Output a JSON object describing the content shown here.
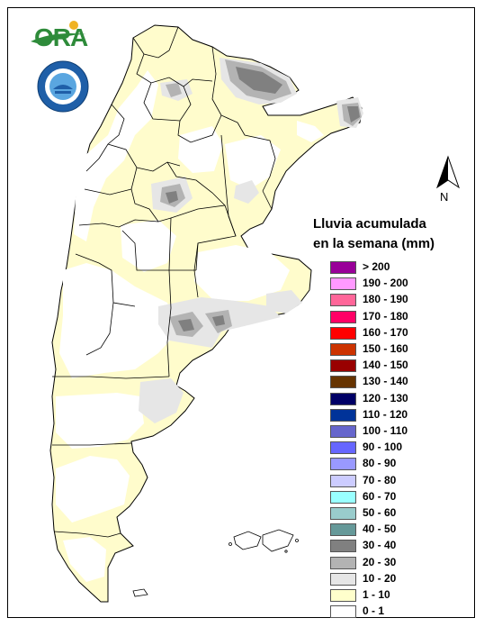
{
  "brand": {
    "logo_text": "ORA",
    "seal_name": "seal-emblem"
  },
  "north_label": "N",
  "legend": {
    "title_line1": "Lluvia acumulada",
    "title_line2": "en la semana (mm)",
    "items": [
      {
        "label": "> 200",
        "color": "#990099"
      },
      {
        "label": "190 - 200",
        "color": "#ff99ff"
      },
      {
        "label": "180 - 190",
        "color": "#ff6699"
      },
      {
        "label": "170 - 180",
        "color": "#ff0066"
      },
      {
        "label": "160 - 170",
        "color": "#ff0000"
      },
      {
        "label": "150 - 160",
        "color": "#cc3300"
      },
      {
        "label": "140 - 150",
        "color": "#990000"
      },
      {
        "label": "130 - 140",
        "color": "#663300"
      },
      {
        "label": "120 - 130",
        "color": "#000066"
      },
      {
        "label": "110 - 120",
        "color": "#003399"
      },
      {
        "label": "100 - 110",
        "color": "#6666cc"
      },
      {
        "label": "90 - 100",
        "color": "#6666ff"
      },
      {
        "label": "80 - 90",
        "color": "#9999ff"
      },
      {
        "label": "70 - 80",
        "color": "#ccccff"
      },
      {
        "label": "60 - 70",
        "color": "#99ffff"
      },
      {
        "label": "50 - 60",
        "color": "#99cccc"
      },
      {
        "label": "40 - 50",
        "color": "#669999"
      },
      {
        "label": "30 - 40",
        "color": "#808080"
      },
      {
        "label": "20 - 30",
        "color": "#b3b3b3"
      },
      {
        "label": "10 - 20",
        "color": "#e6e6e6"
      },
      {
        "label": "1 - 10",
        "color": "#ffffcc"
      },
      {
        "label": "0 - 1",
        "color": "#ffffff"
      }
    ]
  }
}
